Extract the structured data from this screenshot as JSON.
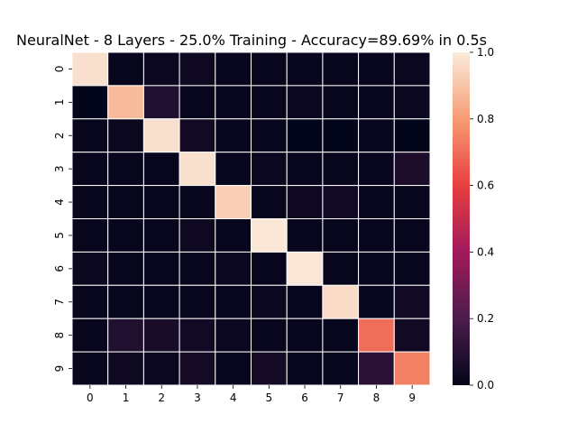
{
  "chart_data": {
    "type": "heatmap",
    "title": "NeuralNet - 8 Layers - 25.0% Training - Accuracy=89.69% in 0.5s",
    "xlabel": "",
    "ylabel": "",
    "x_categories": [
      "0",
      "1",
      "2",
      "3",
      "4",
      "5",
      "6",
      "7",
      "8",
      "9"
    ],
    "y_categories": [
      "0",
      "1",
      "2",
      "3",
      "4",
      "5",
      "6",
      "7",
      "8",
      "9"
    ],
    "values": [
      [
        0.97,
        0.01,
        0.02,
        0.03,
        0.01,
        0.01,
        0.01,
        0.01,
        0.01,
        0.02
      ],
      [
        0.0,
        0.88,
        0.08,
        0.01,
        0.01,
        0.01,
        0.02,
        0.01,
        0.01,
        0.02
      ],
      [
        0.01,
        0.02,
        0.97,
        0.04,
        0.01,
        0.01,
        0.0,
        0.0,
        0.01,
        0.0
      ],
      [
        0.01,
        0.01,
        0.01,
        0.97,
        0.01,
        0.02,
        0.01,
        0.01,
        0.01,
        0.07
      ],
      [
        0.01,
        0.01,
        0.01,
        0.01,
        0.93,
        0.01,
        0.03,
        0.04,
        0.01,
        0.01
      ],
      [
        0.01,
        0.01,
        0.01,
        0.03,
        0.01,
        0.99,
        0.01,
        0.01,
        0.01,
        0.01
      ],
      [
        0.02,
        0.01,
        0.01,
        0.01,
        0.02,
        0.01,
        0.99,
        0.01,
        0.01,
        0.01
      ],
      [
        0.01,
        0.01,
        0.01,
        0.01,
        0.01,
        0.02,
        0.01,
        0.96,
        0.01,
        0.04
      ],
      [
        0.01,
        0.08,
        0.06,
        0.04,
        0.02,
        0.01,
        0.01,
        0.01,
        0.7,
        0.04
      ],
      [
        0.01,
        0.03,
        0.02,
        0.05,
        0.01,
        0.05,
        0.01,
        0.01,
        0.1,
        0.74
      ]
    ],
    "vmin": 0.0,
    "vmax": 1.0,
    "colorbar_ticks": [
      "0.0",
      "0.2",
      "0.4",
      "0.6",
      "0.8",
      "1.0"
    ],
    "colormap": "rocket",
    "colormap_stops": [
      "#03051a",
      "#4c1d4b",
      "#a11a5b",
      "#e83f3f",
      "#f69c73",
      "#faebdd"
    ],
    "grid_line_color": "#ffffff"
  }
}
